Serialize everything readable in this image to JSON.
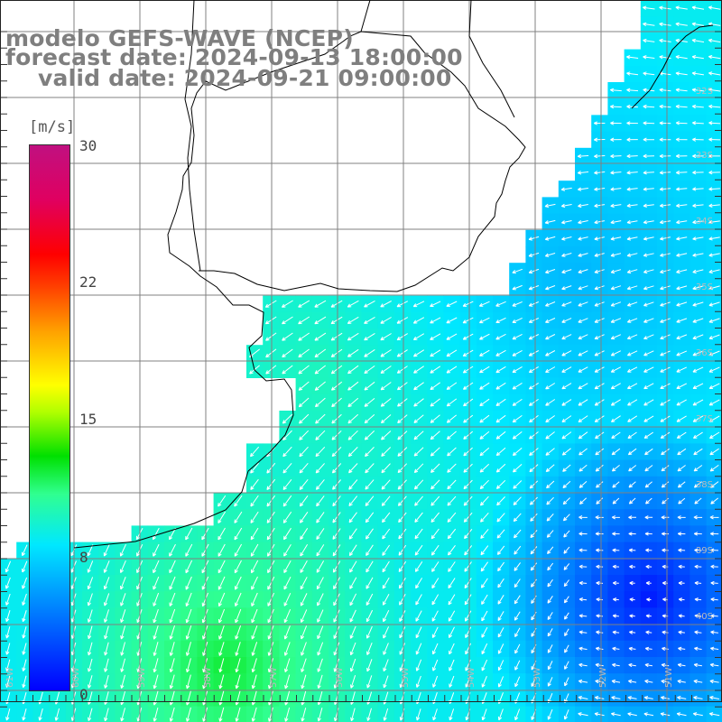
{
  "title": {
    "line1": "modelo GEFS-WAVE (NCEP)",
    "line2": "forecast date: 2024-09-13 18:00:00",
    "line3": "valid date: 2024-09-21 09:00:00"
  },
  "colorbar": {
    "unit": "[m/s]",
    "ticks": [
      "30",
      "22",
      "15",
      "8",
      "0"
    ],
    "colors": [
      "#0000ff",
      "#0070ff",
      "#00e8ff",
      "#30ff90",
      "#00e000",
      "#b0ff00",
      "#ffff00",
      "#ffa000",
      "#ff4000",
      "#ff0000",
      "#e00060",
      "#c01080"
    ]
  },
  "map": {
    "variable": "wind speed with direction arrows",
    "latitude_labels": [
      "32S",
      "33S",
      "34S",
      "35S",
      "36S",
      "37S",
      "38S",
      "39S",
      "40S"
    ],
    "longitude_labels": [
      "61W",
      "60W",
      "59W",
      "58W",
      "57W",
      "56W",
      "55W",
      "54W",
      "53W",
      "52W",
      "51W"
    ],
    "land_color": "#ffffff",
    "coastline_color": "#000000",
    "grid_color": "#808080",
    "arrow_color": "#ffffff",
    "wind_flow": "arrows point west over the northeast shelf, turning south-southwest toward the southwest of the map; weakest winds in the southeast corner, strongest near the bottom-left"
  }
}
